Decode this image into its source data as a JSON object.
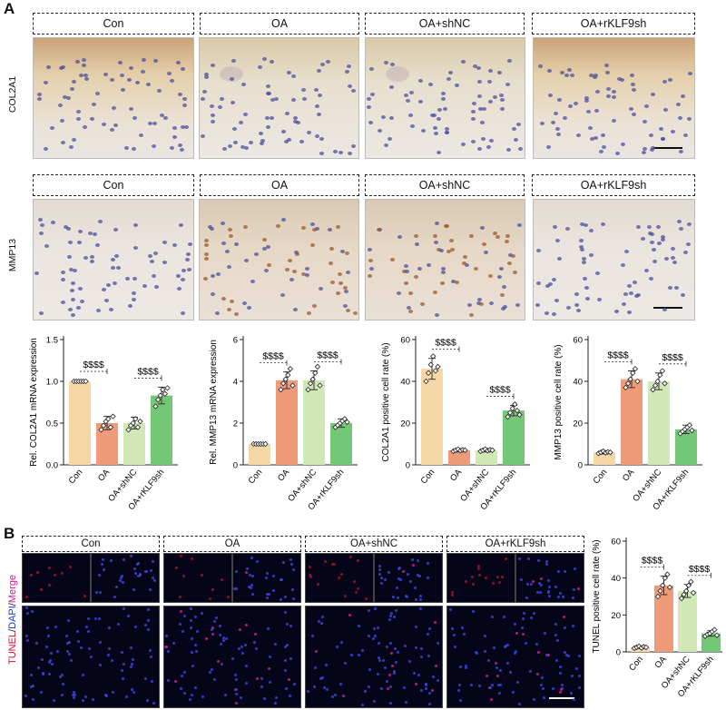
{
  "panel_a": {
    "letter": "A",
    "groups": [
      "Con",
      "OA",
      "OA+shNC",
      "OA+rKLF9sh"
    ],
    "row_labels": [
      "COL2A1",
      "MMP13"
    ]
  },
  "panel_b": {
    "letter": "B",
    "groups": [
      "Con",
      "OA",
      "OA+shNC",
      "OA+rKLF9sh"
    ],
    "row_label_tunel": "TUNEL",
    "row_label_dapi": "DAPI",
    "row_label_merge": "Merge",
    "row_label_sep": "/",
    "colors": {
      "tunel": "#d0102a",
      "dapi": "#1d38c9",
      "merge": "#c5188f"
    }
  },
  "chart_data": [
    {
      "type": "bar",
      "categories": [
        "Con",
        "OA",
        "OA+shNC",
        "OA+rKLF9sh"
      ],
      "values": [
        1.0,
        0.5,
        0.5,
        0.83
      ],
      "errors": [
        0.01,
        0.08,
        0.07,
        0.1
      ],
      "points": [
        [
          1,
          1,
          1,
          1,
          1,
          1
        ],
        [
          0.42,
          0.47,
          0.52,
          0.55,
          0.45,
          0.58
        ],
        [
          0.42,
          0.47,
          0.5,
          0.55,
          0.45,
          0.52
        ],
        [
          0.7,
          0.78,
          0.83,
          0.9,
          0.85,
          0.92
        ]
      ],
      "ylabel": "Rel. COL2A1 mRNA expression",
      "ylim": [
        0,
        1.5
      ],
      "yticks": [
        "0.0",
        "0.5",
        "1.0",
        "1.5"
      ],
      "yticks_v": [
        0,
        0.5,
        1.0,
        1.5
      ],
      "annotations": [
        {
          "text": "$$$$",
          "from": 0,
          "to": 1
        },
        {
          "text": "$$$$",
          "from": 2,
          "to": 3
        }
      ]
    },
    {
      "type": "bar",
      "categories": [
        "Con",
        "OA",
        "OA+shNC",
        "OA+rKLF9sh"
      ],
      "values": [
        1.0,
        4.05,
        4.05,
        2.0
      ],
      "errors": [
        0.02,
        0.4,
        0.45,
        0.2
      ],
      "points": [
        [
          1,
          1,
          1,
          1,
          1,
          1
        ],
        [
          3.6,
          3.9,
          4.1,
          4.3,
          4.6,
          3.8
        ],
        [
          3.6,
          3.9,
          4.1,
          4.4,
          4.7,
          3.8
        ],
        [
          1.8,
          1.9,
          2.0,
          2.1,
          2.2,
          2.05
        ]
      ],
      "ylabel": "Rel. MMP13 mRNA expression",
      "ylim": [
        0,
        6
      ],
      "yticks": [
        "0",
        "2",
        "4",
        "6"
      ],
      "yticks_v": [
        0,
        2,
        4,
        6
      ],
      "annotations": [
        {
          "text": "$$$$",
          "from": 0,
          "to": 1
        },
        {
          "text": "$$$$",
          "from": 2,
          "to": 3
        }
      ]
    },
    {
      "type": "bar",
      "categories": [
        "Con",
        "OA",
        "OA+shNC",
        "OA+rKLF9sh"
      ],
      "values": [
        46,
        7,
        7,
        26
      ],
      "errors": [
        5,
        0.8,
        0.8,
        2.5
      ],
      "points": [
        [
          40,
          44,
          48,
          52,
          45,
          47
        ],
        [
          6.5,
          7,
          7.5,
          6.8,
          7.2,
          7
        ],
        [
          6.5,
          7,
          7.5,
          6.8,
          7.2,
          7
        ],
        [
          23,
          25,
          27,
          29,
          26,
          24
        ]
      ],
      "ylabel": "COL2A1 positive cell rate (%)",
      "ylim": [
        0,
        60
      ],
      "yticks": [
        "0",
        "20",
        "40",
        "60"
      ],
      "yticks_v": [
        0,
        20,
        40,
        60
      ],
      "annotations": [
        {
          "text": "$$$$",
          "from": 0,
          "to": 1
        },
        {
          "text": "$$$$",
          "from": 2,
          "to": 3
        }
      ]
    },
    {
      "type": "bar",
      "categories": [
        "Con",
        "OA",
        "OA+shNC",
        "OA+rKLF9sh"
      ],
      "values": [
        6,
        41,
        40,
        17
      ],
      "errors": [
        0.8,
        4,
        4,
        2
      ],
      "points": [
        [
          5.5,
          6,
          6.5,
          5.8,
          6.2,
          6
        ],
        [
          37,
          39,
          41,
          44,
          46,
          40
        ],
        [
          36,
          38,
          40,
          43,
          45,
          39
        ],
        [
          15,
          16,
          17,
          18,
          19,
          16.5
        ]
      ],
      "ylabel": "MMP13 positive cell rate (%)",
      "ylim": [
        0,
        60
      ],
      "yticks": [
        "0",
        "20",
        "40",
        "60"
      ],
      "yticks_v": [
        0,
        20,
        40,
        60
      ],
      "annotations": [
        {
          "text": "$$$$",
          "from": 0,
          "to": 1
        },
        {
          "text": "$$$$",
          "from": 2,
          "to": 3
        }
      ]
    },
    {
      "type": "bar",
      "categories": [
        "Con",
        "OA",
        "OA+shNC",
        "OA+rKLF9sh"
      ],
      "values": [
        2.5,
        36,
        33,
        10
      ],
      "errors": [
        0.5,
        5,
        3.5,
        1.5
      ],
      "points": [
        [
          2,
          2.5,
          3,
          2.2,
          2.8,
          2.5
        ],
        [
          30,
          33,
          36,
          40,
          42,
          35
        ],
        [
          29,
          31,
          33,
          36,
          38,
          32
        ],
        [
          8.5,
          9.5,
          10,
          11,
          12,
          9
        ]
      ],
      "ylabel": "TUNEL positive cell rate (%)",
      "ylim": [
        0,
        60
      ],
      "yticks": [
        "0",
        "20",
        "40",
        "60"
      ],
      "yticks_v": [
        0,
        20,
        40,
        60
      ],
      "annotations": [
        {
          "text": "$$$$",
          "from": 0,
          "to": 1
        },
        {
          "text": "$$$$",
          "from": 2,
          "to": 3
        }
      ]
    }
  ],
  "colors": {
    "bars": [
      "#f6d7a6",
      "#ef9b79",
      "#cfe8b6",
      "#73c777"
    ],
    "dots_edge": "#222222"
  }
}
